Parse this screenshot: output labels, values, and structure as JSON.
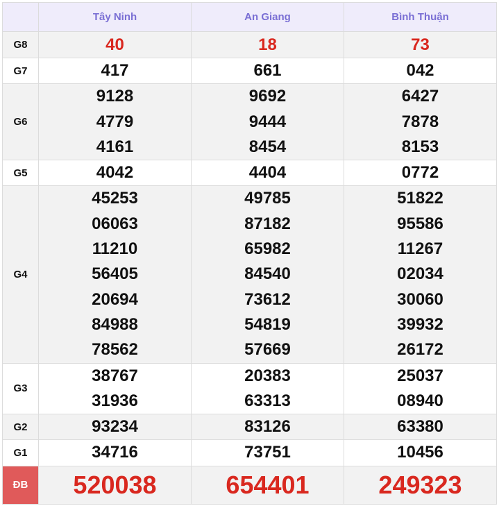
{
  "header": {
    "provinces": [
      "Tây Ninh",
      "An Giang",
      "Bình Thuận"
    ]
  },
  "rows": [
    {
      "label": "G8",
      "values": [
        [
          "40"
        ],
        [
          "18"
        ],
        [
          "73"
        ]
      ]
    },
    {
      "label": "G7",
      "values": [
        [
          "417"
        ],
        [
          "661"
        ],
        [
          "042"
        ]
      ]
    },
    {
      "label": "G6",
      "values": [
        [
          "9128",
          "4779",
          "4161"
        ],
        [
          "9692",
          "9444",
          "8454"
        ],
        [
          "6427",
          "7878",
          "8153"
        ]
      ]
    },
    {
      "label": "G5",
      "values": [
        [
          "4042"
        ],
        [
          "4404"
        ],
        [
          "0772"
        ]
      ]
    },
    {
      "label": "G4",
      "values": [
        [
          "45253",
          "06063",
          "11210",
          "56405",
          "20694",
          "84988",
          "78562"
        ],
        [
          "49785",
          "87182",
          "65982",
          "84540",
          "73612",
          "54819",
          "57669"
        ],
        [
          "51822",
          "95586",
          "11267",
          "02034",
          "30060",
          "39932",
          "26172"
        ]
      ]
    },
    {
      "label": "G3",
      "values": [
        [
          "38767",
          "31936"
        ],
        [
          "20383",
          "63313"
        ],
        [
          "25037",
          "08940"
        ]
      ]
    },
    {
      "label": "G2",
      "values": [
        [
          "93234"
        ],
        [
          "83126"
        ],
        [
          "63380"
        ]
      ]
    },
    {
      "label": "G1",
      "values": [
        [
          "34716"
        ],
        [
          "73751"
        ],
        [
          "10456"
        ]
      ]
    },
    {
      "label": "ĐB",
      "values": [
        [
          "520038"
        ],
        [
          "654401"
        ],
        [
          "249323"
        ]
      ]
    }
  ],
  "colors": {
    "header_text": "#7a6fd4",
    "highlight": "#d9281f",
    "db_label_bg": "#e05a5a"
  }
}
